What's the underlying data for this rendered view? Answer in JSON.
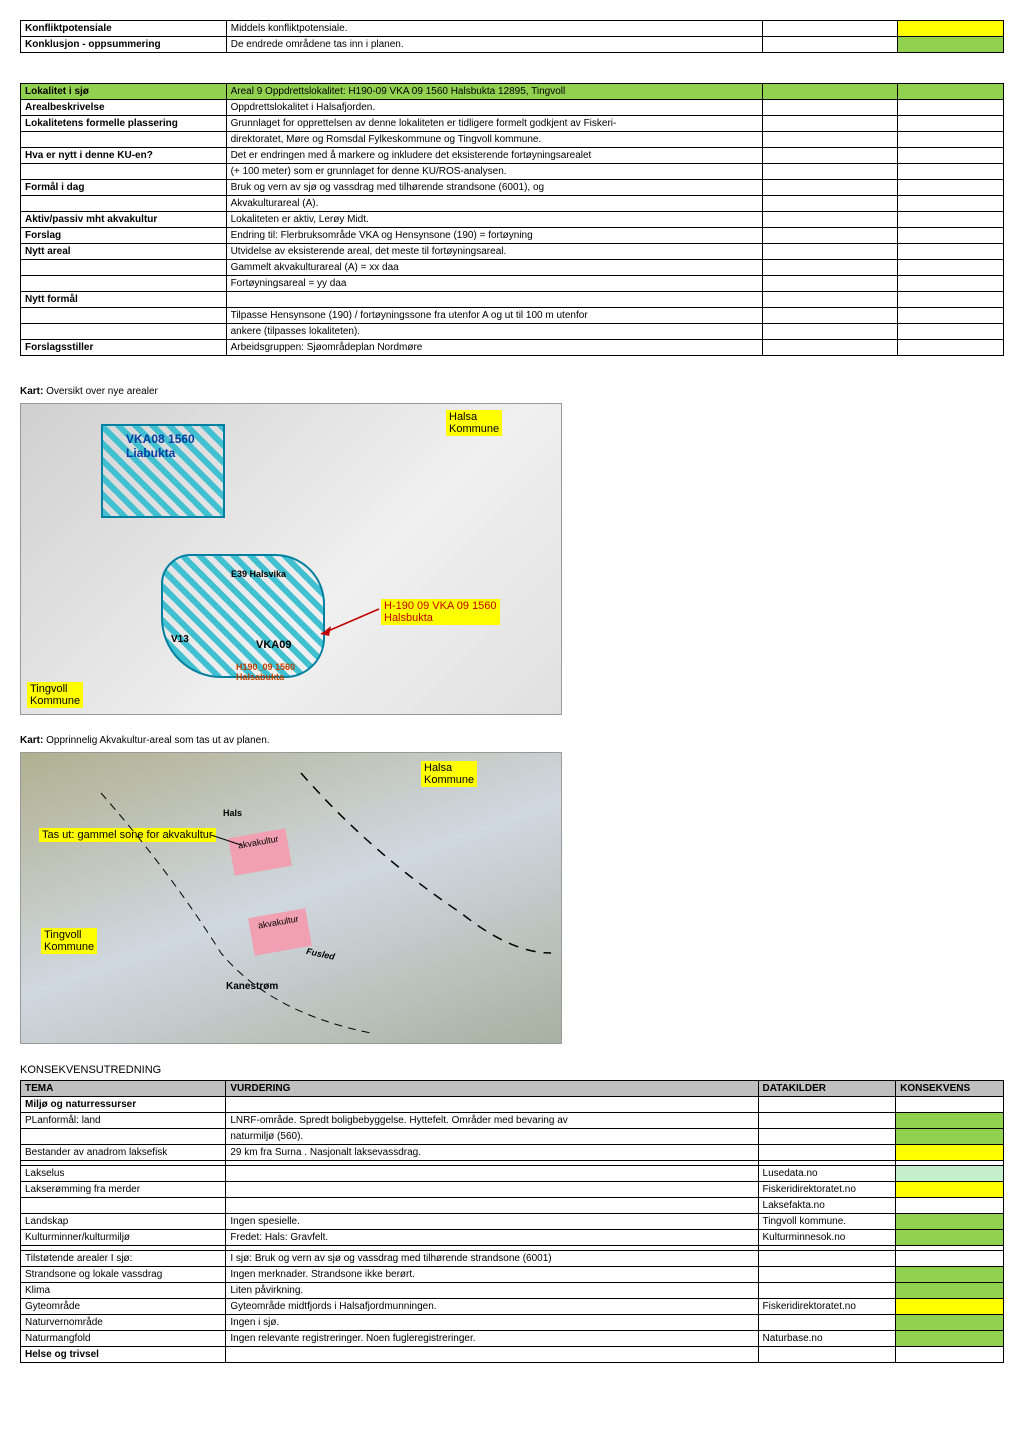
{
  "topTable": {
    "rows": [
      {
        "c1": "Konfliktpotensiale",
        "c2": "Middels konfliktpotensiale.",
        "c4_class": "yellow"
      },
      {
        "c1": "Konklusjon - oppsummering",
        "c2": "De endrede områdene tas inn i planen.",
        "c4_class": "green"
      }
    ]
  },
  "infoTable": {
    "rows": [
      {
        "c1": "Lokalitet i sjø",
        "c2": "Areal 9 Oppdrettslokalitet: H190-09  VKA 09 1560 Halsbukta 12895, Tingvoll",
        "c1_class": "green bold",
        "c2_class": "green",
        "c3_class": "green",
        "c4_class": "green"
      },
      {
        "c1": "Arealbeskrivelse",
        "c2": "Oppdrettslokalitet i Halsafjorden.",
        "c1_class": "bold"
      },
      {
        "c1": "Lokalitetens formelle plassering",
        "c2": "Grunnlaget for opprettelsen av denne lokaliteten er tidligere formelt godkjent av Fiskeri-",
        "c1_class": "bold"
      },
      {
        "c1": "",
        "c2": "direktoratet, Møre og Romsdal Fylkeskommune og Tingvoll kommune."
      },
      {
        "c1": "Hva er nytt i denne KU-en?",
        "c2": "Det er endringen med å markere og inkludere det eksisterende fortøyningsarealet",
        "c1_class": "bold"
      },
      {
        "c1": "",
        "c2": "(+ 100 meter)  som er grunnlaget for denne KU/ROS-analysen."
      },
      {
        "c1": "Formål i dag",
        "c2": "Bruk og vern av sjø og vassdrag med tilhørende strandsone (6001), og",
        "c1_class": "bold"
      },
      {
        "c1": "",
        "c2": "Akvakulturareal (A)."
      },
      {
        "c1": "Aktiv/passiv mht akvakultur",
        "c2": "Lokaliteten er aktiv, Lerøy Midt.",
        "c1_class": "bold"
      },
      {
        "c1": "Forslag",
        "c2": "Endring til: Flerbruksområde VKA og Hensynsone (190) = fortøyning",
        "c1_class": "bold"
      },
      {
        "c1": "Nytt areal",
        "c2": "Utvidelse av eksisterende areal, det meste til fortøyningsareal.",
        "c1_class": "bold"
      },
      {
        "c1": "",
        "c2": "Gammelt akvakulturareal (A) = xx daa"
      },
      {
        "c1": "",
        "c2": "Fortøyningsareal = yy daa"
      },
      {
        "c1": "Nytt formål",
        "c2": "",
        "c1_class": "bold"
      },
      {
        "c1": "",
        "c2": "Tilpasse Hensynsone (190) / fortøyningssone fra utenfor A og ut til 100 m utenfor"
      },
      {
        "c1": "",
        "c2": "ankere (tilpasses lokaliteten)."
      },
      {
        "c1": "Forslagsstiller",
        "c2": "Arbeidsgruppen: Sjøområdeplan Nordmøre",
        "c1_class": "bold"
      }
    ]
  },
  "kart1": {
    "label_prefix": "Kart:",
    "label": "Oversikt over nye arealer",
    "halsa": "Halsa\nKommune",
    "tingvoll": "Tingvoll\nKommune",
    "vka08": "VKA08 1560\nLiabukta",
    "h190": "H-190 09 VKA 09 1560\nHalsbukta",
    "halsvika": "E39 Halsvika",
    "v13": "V13",
    "vka09": "VKA09",
    "bottom": "H190_09 1560\nHalsabukta"
  },
  "kart2": {
    "label_prefix": "Kart:",
    "label": "Opprinnelig Akvakultur-areal som tas ut av planen.",
    "halsa": "Halsa\nKommune",
    "tingvoll": "Tingvoll\nKommune",
    "tasut": "Tas ut: gammel sone for akvakultur",
    "akva1": "akvakultur",
    "akva2": "akvakultur",
    "fusled": "Fusled",
    "kanestrom": "Kanestrøm",
    "hals": "Hals"
  },
  "konsekvens": {
    "title": "KONSEKVENSUTREDNING",
    "header": {
      "c1": "TEMA",
      "c2": "VURDERING",
      "c3": "DATAKILDER",
      "c4": "KONSEKVENS"
    },
    "rows": [
      {
        "c1": "Miljø og naturressurser",
        "c1_class": "bold"
      },
      {
        "c1": "PLanformål: land",
        "c2": "LNRF-område. Spredt boligbebyggelse. Hyttefelt. Områder med bevaring av",
        "c4_class": "green"
      },
      {
        "c1": "",
        "c2": "naturmiljø (560).",
        "c4_class": "green"
      },
      {
        "c1": "Bestander av anadrom laksefisk",
        "c2": "29 km fra Surna . Nasjonalt laksevassdrag.",
        "c4_class": "yellow"
      },
      {
        "c1": "",
        "c2": ""
      },
      {
        "c1": "     Lakselus",
        "c2": "",
        "c3": "Lusedata.no",
        "c4_class": "lightgreen"
      },
      {
        "c1": "     Lakserømming fra merder",
        "c2": "",
        "c3": "Fiskeridirektoratet.no",
        "c4_class": "yellow"
      },
      {
        "c1": "",
        "c2": "",
        "c3": "Laksefakta.no"
      },
      {
        "c1": "Landskap",
        "c2": "Ingen spesielle.",
        "c3": "Tingvoll kommune.",
        "c4_class": "green"
      },
      {
        "c1": "Kulturminner/kulturmiljø",
        "c2": "Fredet: Hals: Gravfelt.",
        "c3": "Kulturminnesok.no",
        "c4_class": "green"
      },
      {
        "c1": "",
        "c2": ""
      },
      {
        "c1": "Tilstøtende arealer                    I sjø:",
        "c2": "I sjø: Bruk og vern av sjø og vassdrag med tilhørende strandsone (6001)"
      },
      {
        "c1": "Strandsone og lokale vassdrag",
        "c2": "Ingen merknader. Strandsone ikke berørt.",
        "c4_class": "green"
      },
      {
        "c1": "Klima",
        "c2": "Liten påvirkning.",
        "c4_class": "green"
      },
      {
        "c1": "Gyteområde",
        "c2": "Gyteområde midtfjords i Halsafjordmunningen.",
        "c3": "Fiskeridirektoratet.no",
        "c4_class": "yellow"
      },
      {
        "c1": "Naturvernområde",
        "c2": "Ingen i sjø.",
        "c4_class": "green"
      },
      {
        "c1": "Naturmangfold",
        "c2": "Ingen relevante registreringer. Noen fugleregistreringer.",
        "c3": "Naturbase.no",
        "c4_class": "green"
      },
      {
        "c1": "Helse og trivsel",
        "c1_class": "bold"
      }
    ]
  }
}
